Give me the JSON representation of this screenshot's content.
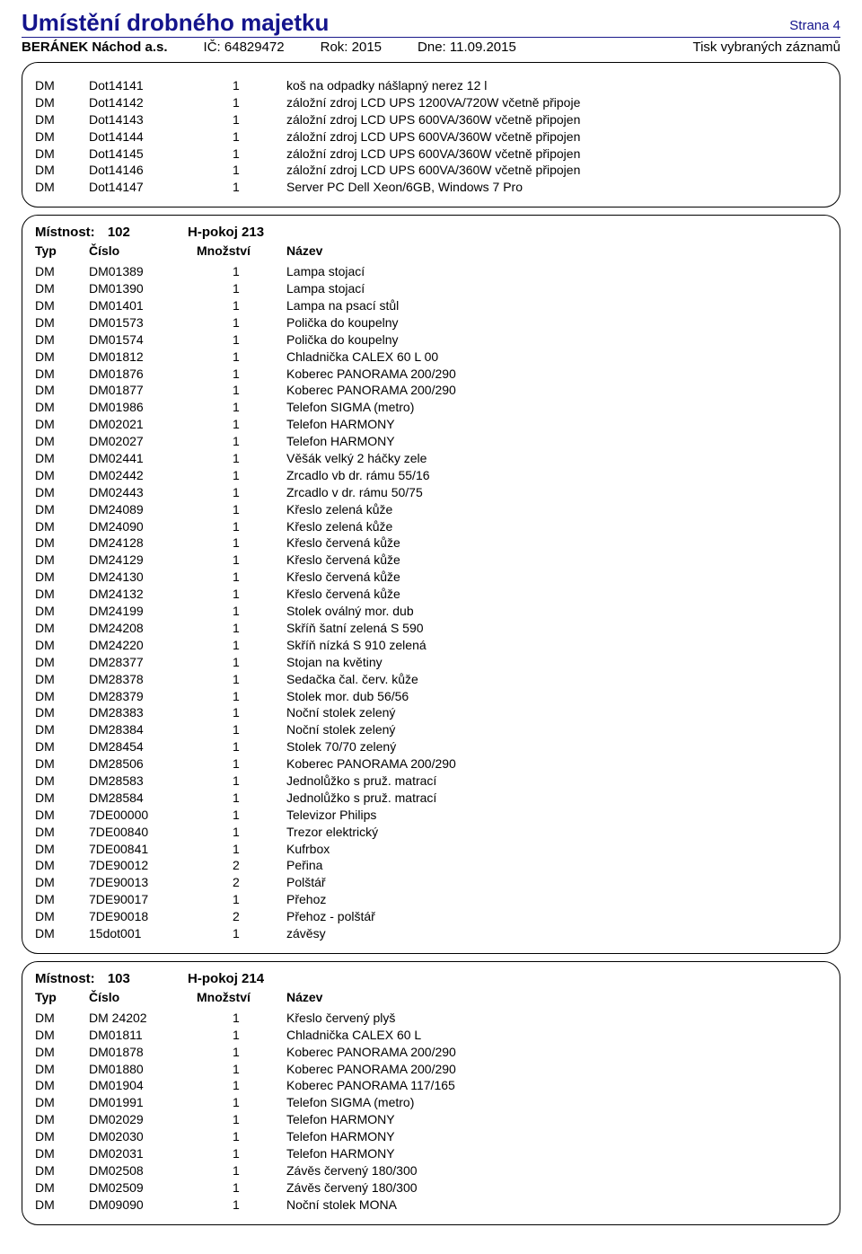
{
  "header": {
    "title": "Umístění drobného majetku",
    "page": "Strana 4",
    "company": "BERÁNEK Náchod a.s.",
    "ic": "IČ: 64829472",
    "year": "Rok: 2015",
    "date": "Dne: 11.09.2015",
    "print": "Tisk vybraných záznamů"
  },
  "col_headers": [
    "Typ",
    "Číslo",
    "Množství",
    "Název"
  ],
  "section0": {
    "rows": [
      [
        "DM",
        "Dot14141",
        "1",
        "koš na odpadky nášlapný nerez 12 l"
      ],
      [
        "DM",
        "Dot14142",
        "1",
        "záložní zdroj LCD UPS 1200VA/720W včetně připoje"
      ],
      [
        "DM",
        "Dot14143",
        "1",
        "záložní zdroj LCD UPS 600VA/360W včetně připojen"
      ],
      [
        "DM",
        "Dot14144",
        "1",
        "záložní zdroj LCD UPS 600VA/360W včetně připojen"
      ],
      [
        "DM",
        "Dot14145",
        "1",
        "záložní zdroj LCD UPS 600VA/360W včetně připojen"
      ],
      [
        "DM",
        "Dot14146",
        "1",
        "záložní zdroj LCD UPS 600VA/360W včetně připojen"
      ],
      [
        "DM",
        "Dot14147",
        "1",
        "Server PC Dell Xeon/6GB, Windows 7 Pro"
      ]
    ]
  },
  "section1": {
    "room_label": "Místnost:",
    "room_num": "102",
    "room_name": "H-pokoj 213",
    "rows": [
      [
        "DM",
        "DM01389",
        "1",
        "Lampa stojací"
      ],
      [
        "DM",
        "DM01390",
        "1",
        "Lampa stojací"
      ],
      [
        "DM",
        "DM01401",
        "1",
        "Lampa na psací stůl"
      ],
      [
        "DM",
        "DM01573",
        "1",
        "Polička do koupelny"
      ],
      [
        "DM",
        "DM01574",
        "1",
        "Polička do koupelny"
      ],
      [
        "DM",
        "DM01812",
        "1",
        "Chladnička CALEX 60 L 00"
      ],
      [
        "DM",
        "DM01876",
        "1",
        "Koberec PANORAMA 200/290"
      ],
      [
        "DM",
        "DM01877",
        "1",
        "Koberec PANORAMA 200/290"
      ],
      [
        "DM",
        "DM01986",
        "1",
        "Telefon SIGMA (metro)"
      ],
      [
        "DM",
        "DM02021",
        "1",
        "Telefon HARMONY"
      ],
      [
        "DM",
        "DM02027",
        "1",
        "Telefon HARMONY"
      ],
      [
        "DM",
        "DM02441",
        "1",
        "Věšák velký 2 háčky zele"
      ],
      [
        "DM",
        "DM02442",
        "1",
        "Zrcadlo vb dr. rámu 55/16"
      ],
      [
        "DM",
        "DM02443",
        "1",
        "Zrcadlo v dr. rámu 50/75"
      ],
      [
        "DM",
        "DM24089",
        "1",
        "Křeslo zelená kůže"
      ],
      [
        "DM",
        "DM24090",
        "1",
        "Křeslo zelená kůže"
      ],
      [
        "DM",
        "DM24128",
        "1",
        "Křeslo červená kůže"
      ],
      [
        "DM",
        "DM24129",
        "1",
        "Křeslo červená kůže"
      ],
      [
        "DM",
        "DM24130",
        "1",
        "Křeslo červená kůže"
      ],
      [
        "DM",
        "DM24132",
        "1",
        "Křeslo červená kůže"
      ],
      [
        "DM",
        "DM24199",
        "1",
        "Stolek oválný mor. dub"
      ],
      [
        "DM",
        "DM24208",
        "1",
        "Skříň šatní zelená S 590"
      ],
      [
        "DM",
        "DM24220",
        "1",
        "Skříň nízká S 910 zelená"
      ],
      [
        "DM",
        "DM28377",
        "1",
        "Stojan na květiny"
      ],
      [
        "DM",
        "DM28378",
        "1",
        "Sedačka čal. červ. kůže"
      ],
      [
        "DM",
        "DM28379",
        "1",
        "Stolek mor. dub 56/56"
      ],
      [
        "DM",
        "DM28383",
        "1",
        "Noční stolek zelený"
      ],
      [
        "DM",
        "DM28384",
        "1",
        "Noční stolek zelený"
      ],
      [
        "DM",
        "DM28454",
        "1",
        "Stolek 70/70 zelený"
      ],
      [
        "DM",
        "DM28506",
        "1",
        "Koberec PANORAMA 200/290"
      ],
      [
        "DM",
        "DM28583",
        "1",
        "Jednolůžko s pruž. matrací"
      ],
      [
        "DM",
        "DM28584",
        "1",
        "Jednolůžko s pruž. matrací"
      ],
      [
        "DM",
        "7DE00000",
        "1",
        "Televizor Philips"
      ],
      [
        "DM",
        "7DE00840",
        "1",
        "Trezor elektrický"
      ],
      [
        "DM",
        "7DE00841",
        "1",
        "Kufrbox"
      ],
      [
        "DM",
        "7DE90012",
        "2",
        "Peřina"
      ],
      [
        "DM",
        "7DE90013",
        "2",
        "Polštář"
      ],
      [
        "DM",
        "7DE90017",
        "1",
        "Přehoz"
      ],
      [
        "DM",
        "7DE90018",
        "2",
        "Přehoz - polštář"
      ],
      [
        "DM",
        "15dot001",
        "1",
        "závěsy"
      ]
    ]
  },
  "section2": {
    "room_label": "Místnost:",
    "room_num": "103",
    "room_name": "H-pokoj 214",
    "rows": [
      [
        "DM",
        "DM 24202",
        "1",
        "Křeslo červený plyš"
      ],
      [
        "DM",
        "DM01811",
        "1",
        "Chladnička CALEX 60 L"
      ],
      [
        "DM",
        "DM01878",
        "1",
        "Koberec PANORAMA 200/290"
      ],
      [
        "DM",
        "DM01880",
        "1",
        "Koberec PANORAMA 200/290"
      ],
      [
        "DM",
        "DM01904",
        "1",
        "Koberec PANORAMA 117/165"
      ],
      [
        "DM",
        "DM01991",
        "1",
        "Telefon SIGMA (metro)"
      ],
      [
        "DM",
        "DM02029",
        "1",
        "Telefon HARMONY"
      ],
      [
        "DM",
        "DM02030",
        "1",
        "Telefon HARMONY"
      ],
      [
        "DM",
        "DM02031",
        "1",
        "Telefon HARMONY"
      ],
      [
        "DM",
        "DM02508",
        "1",
        "Závěs červený 180/300"
      ],
      [
        "DM",
        "DM02509",
        "1",
        "Závěs červený 180/300"
      ],
      [
        "DM",
        "DM09090",
        "1",
        "Noční stolek MONA"
      ]
    ]
  }
}
